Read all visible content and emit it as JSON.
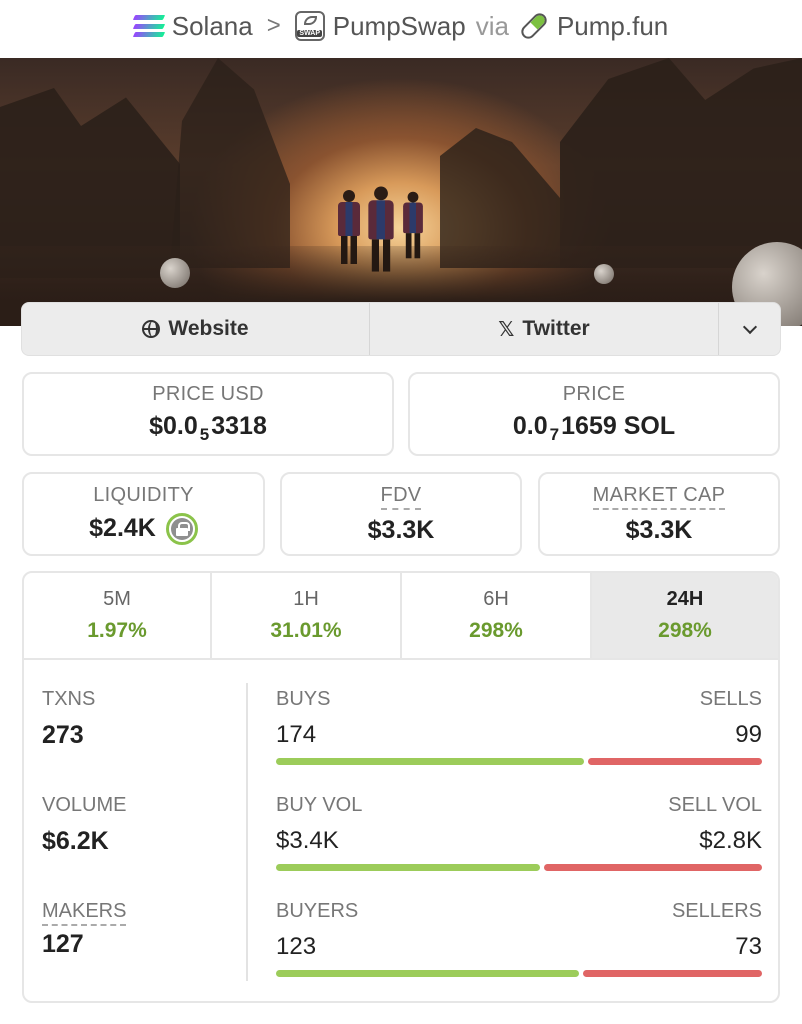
{
  "breadcrumb": {
    "chain": "Solana",
    "separator": ">",
    "dex": "PumpSwap",
    "via": "via",
    "source": "Pump.fun"
  },
  "links": {
    "website": "Website",
    "twitter": "Twitter",
    "more_icon": "chevron-down-icon"
  },
  "price_usd": {
    "label": "PRICE USD",
    "prefix": "$0.0",
    "zeros": "5",
    "digits": "3318"
  },
  "price_native": {
    "label": "PRICE",
    "prefix": "0.0",
    "zeros": "7",
    "digits": "1659 SOL"
  },
  "liquidity": {
    "label": "LIQUIDITY",
    "value": "$2.4K",
    "locked_icon": "lock-icon"
  },
  "fdv": {
    "label": "FDV",
    "value": "$3.3K"
  },
  "market_cap": {
    "label": "MARKET CAP",
    "value": "$3.3K"
  },
  "timeframes": [
    {
      "label": "5M",
      "change": "1.97%",
      "active": false
    },
    {
      "label": "1H",
      "change": "31.01%",
      "active": false
    },
    {
      "label": "6H",
      "change": "298%",
      "active": false
    },
    {
      "label": "24H",
      "change": "298%",
      "active": true
    }
  ],
  "txns": {
    "label": "TXNS",
    "value": "273",
    "buys_label": "BUYS",
    "buys": "174",
    "sells_label": "SELLS",
    "sells": "99",
    "buy_share": 0.637
  },
  "volume": {
    "label": "VOLUME",
    "value": "$6.2K",
    "buy_label": "BUY VOL",
    "buy": "$3.4K",
    "sell_label": "SELL VOL",
    "sell": "$2.8K",
    "buy_share": 0.548
  },
  "makers": {
    "label": "MAKERS",
    "value": "127",
    "buyers_label": "BUYERS",
    "buyers": "123",
    "sellers_label": "SELLERS",
    "sellers": "73",
    "buy_share": 0.628
  },
  "colors": {
    "positive": "#6a9a2e",
    "buy_bar": "#9ccc5a",
    "sell_bar": "#e06565",
    "lock_ring": "#8bc34a"
  }
}
